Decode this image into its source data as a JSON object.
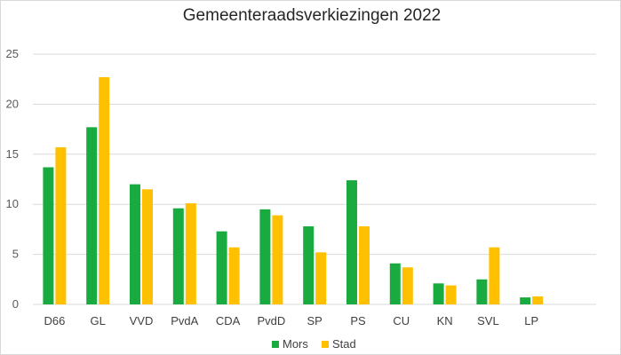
{
  "chart_data": {
    "type": "bar",
    "title": "Gemeenteraadsverkiezingen 2022",
    "categories": [
      "D66",
      "GL",
      "VVD",
      "PvdA",
      "CDA",
      "PvdD",
      "SP",
      "PS",
      "CU",
      "KN",
      "SVL",
      "LP"
    ],
    "series": [
      {
        "name": "Mors",
        "color": "#1aab40",
        "values": [
          13.7,
          17.7,
          12.0,
          9.6,
          7.3,
          9.5,
          7.8,
          12.4,
          4.1,
          2.1,
          2.5,
          0.7
        ]
      },
      {
        "name": "Stad",
        "color": "#ffc000",
        "values": [
          15.7,
          22.7,
          11.5,
          10.1,
          5.7,
          8.9,
          5.2,
          7.8,
          3.7,
          1.9,
          5.7,
          0.8
        ]
      }
    ],
    "ylim": [
      0,
      25
    ],
    "yticks": [
      0,
      5,
      10,
      15,
      20,
      25
    ],
    "grid": true,
    "legend": "bottom",
    "xlabel": "",
    "ylabel": ""
  }
}
